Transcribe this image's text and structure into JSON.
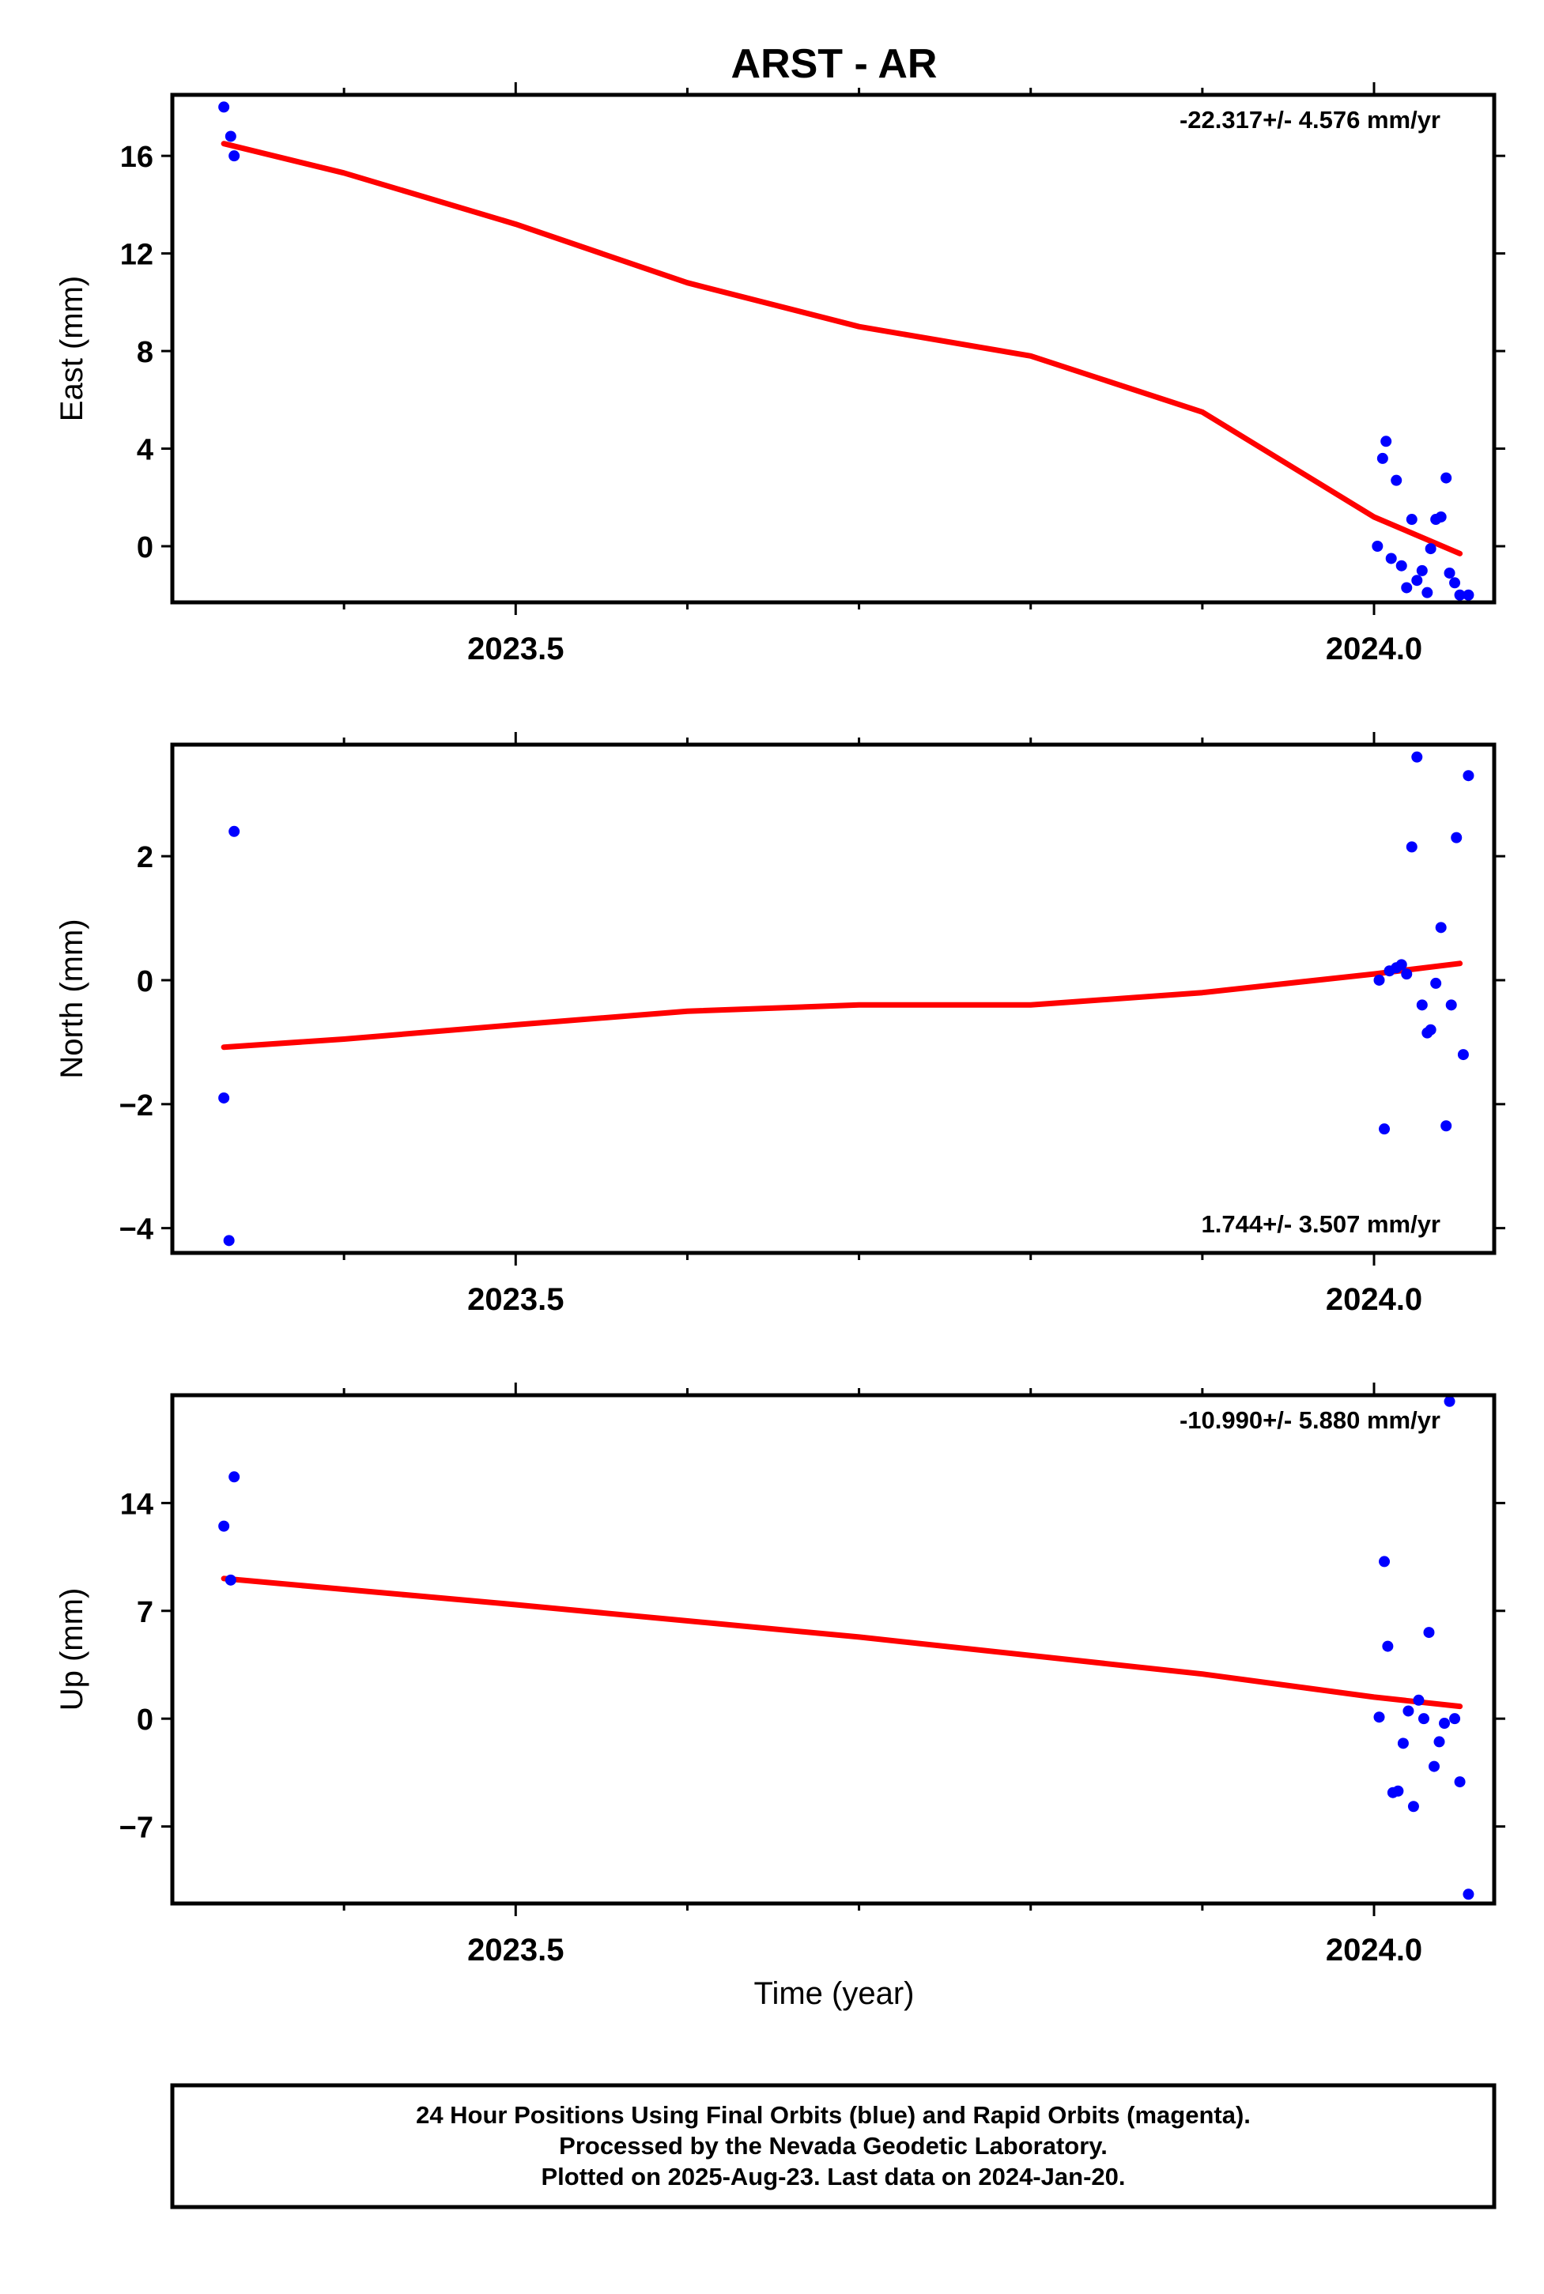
{
  "title": "ARST - AR",
  "colors": {
    "final_orbit_points": "#0000ff",
    "trend_line": "#ff0000",
    "frame": "#000000",
    "background": "#ffffff"
  },
  "chart_data": [
    {
      "type": "scatter",
      "component": "east",
      "title": "ARST - AR",
      "xlabel": "",
      "ylabel": "East (mm)",
      "xlim": [
        2023.3,
        2024.07
      ],
      "ylim": [
        -2.3,
        18.5
      ],
      "yticks": [
        0,
        4,
        8,
        12,
        16
      ],
      "xticks": [
        2023.5,
        2024.0
      ],
      "xtick_labels": [
        "2023.5",
        "2024.0"
      ],
      "grid": false,
      "rate_label": "-22.317+/- 4.576 mm/yr",
      "series": [
        {
          "x": [
            2023.33,
            2023.334,
            2023.336,
            2024.002,
            2024.005,
            2024.007,
            2024.01,
            2024.013,
            2024.016,
            2024.019,
            2024.022,
            2024.025,
            2024.028,
            2024.031,
            2024.033,
            2024.036,
            2024.039,
            2024.042,
            2024.044,
            2024.047,
            2024.05,
            2024.055
          ],
          "y": [
            18.0,
            16.8,
            16.0,
            0.0,
            3.6,
            4.3,
            -0.5,
            2.7,
            -0.8,
            -1.7,
            1.1,
            -1.4,
            -1.0,
            -1.9,
            -0.1,
            1.1,
            1.2,
            2.8,
            -1.1,
            -1.5,
            -2.0,
            -2.0
          ]
        },
        {
          "x": [
            2023.33,
            2023.4,
            2023.5,
            2023.6,
            2023.7,
            2023.8,
            2023.9,
            2024.0,
            2024.05
          ],
          "y": [
            16.5,
            15.3,
            13.2,
            10.8,
            9.0,
            7.8,
            5.5,
            1.2,
            -0.3
          ]
        }
      ]
    },
    {
      "type": "scatter",
      "component": "north",
      "xlabel": "",
      "ylabel": "North (mm)",
      "xlim": [
        2023.3,
        2024.07
      ],
      "ylim": [
        -4.4,
        3.8
      ],
      "yticks": [
        -4,
        -2,
        0,
        2
      ],
      "ytick_labels": [
        "−4",
        "−2",
        "0",
        "2"
      ],
      "xticks": [
        2023.5,
        2024.0
      ],
      "xtick_labels": [
        "2023.5",
        "2024.0"
      ],
      "grid": false,
      "rate_label": "1.744+/- 3.507 mm/yr",
      "series": [
        {
          "x": [
            2023.33,
            2023.333,
            2023.336,
            2024.003,
            2024.006,
            2024.009,
            2024.013,
            2024.016,
            2024.019,
            2024.022,
            2024.025,
            2024.028,
            2024.031,
            2024.033,
            2024.036,
            2024.039,
            2024.042,
            2024.045,
            2024.048,
            2024.052,
            2024.055
          ],
          "y": [
            -1.9,
            -4.2,
            2.4,
            0.0,
            -2.4,
            0.15,
            0.2,
            0.25,
            0.1,
            2.15,
            3.6,
            -0.4,
            -0.85,
            -0.8,
            -0.05,
            0.85,
            -2.35,
            -0.4,
            2.3,
            -1.2,
            3.3
          ]
        },
        {
          "x": [
            2023.33,
            2023.4,
            2023.5,
            2023.6,
            2023.7,
            2023.8,
            2023.9,
            2024.0,
            2024.05
          ],
          "y": [
            -1.08,
            -0.95,
            -0.72,
            -0.5,
            -0.4,
            -0.4,
            -0.2,
            0.1,
            0.27
          ]
        }
      ]
    },
    {
      "type": "scatter",
      "component": "up",
      "xlabel": "Time (year)",
      "ylabel": "Up (mm)",
      "xlim": [
        2023.3,
        2024.07
      ],
      "ylim": [
        -12,
        21
      ],
      "yticks": [
        -7,
        0,
        7,
        14
      ],
      "ytick_labels": [
        "−7",
        "0",
        "7",
        "14"
      ],
      "xticks": [
        2023.5,
        2024.0
      ],
      "xtick_labels": [
        "2023.5",
        "2024.0"
      ],
      "grid": false,
      "rate_label": "-10.990+/- 5.880 mm/yr",
      "series": [
        {
          "x": [
            2023.33,
            2023.334,
            2023.336,
            2024.003,
            2024.006,
            2024.008,
            2024.011,
            2024.014,
            2024.017,
            2024.02,
            2024.023,
            2024.026,
            2024.029,
            2024.032,
            2024.035,
            2024.038,
            2024.041,
            2024.044,
            2024.047,
            2024.05,
            2024.055
          ],
          "y": [
            12.5,
            9.0,
            15.7,
            0.1,
            10.2,
            4.7,
            -4.8,
            -4.7,
            -1.6,
            0.5,
            -5.7,
            1.2,
            0.0,
            5.6,
            -3.1,
            -1.5,
            -0.3,
            20.6,
            0.0,
            -4.1,
            -11.4
          ]
        },
        {
          "x": [
            2023.33,
            2023.5,
            2023.7,
            2023.9,
            2024.0,
            2024.05
          ],
          "y": [
            9.1,
            7.4,
            5.3,
            2.9,
            1.4,
            0.8
          ]
        }
      ]
    }
  ],
  "footer": {
    "line1": "24 Hour Positions Using Final Orbits (blue) and Rapid Orbits (magenta).",
    "line2": "Processed by the Nevada Geodetic Laboratory.",
    "line3": "Plotted on 2025-Aug-23. Last data on 2024-Jan-20."
  }
}
